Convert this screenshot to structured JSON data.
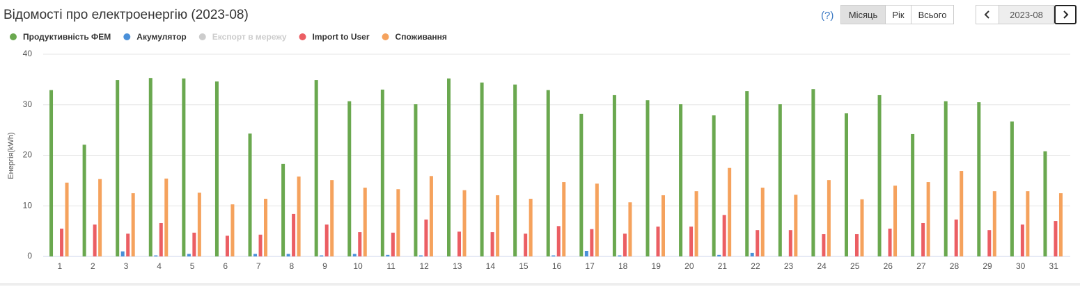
{
  "header": {
    "title": "Відомості про електроенергію (2023-08)"
  },
  "controls": {
    "help": "(?)",
    "periods": [
      "Місяць",
      "Рік",
      "Всього"
    ],
    "active_period": 0,
    "date": "2023-08"
  },
  "chart_data": {
    "type": "bar",
    "y_label": "Енергія(kWh)",
    "categories": [
      "1",
      "2",
      "3",
      "4",
      "5",
      "6",
      "7",
      "8",
      "9",
      "10",
      "11",
      "12",
      "13",
      "14",
      "15",
      "16",
      "17",
      "18",
      "19",
      "20",
      "21",
      "22",
      "23",
      "24",
      "25",
      "26",
      "27",
      "28",
      "29",
      "30",
      "31"
    ],
    "series": [
      {
        "name": "Продуктивність ФЕМ",
        "color": "#6aa84f",
        "visible": true,
        "values": [
          32.9,
          22.1,
          34.9,
          35.3,
          35.2,
          34.6,
          24.3,
          18.3,
          34.9,
          30.7,
          33.0,
          30.1,
          35.2,
          34.4,
          34.0,
          32.9,
          28.2,
          31.9,
          30.9,
          30.1,
          27.9,
          32.7,
          30.1,
          33.1,
          28.3,
          31.9,
          24.2,
          30.7,
          30.5,
          26.7,
          20.8
        ]
      },
      {
        "name": "Акумулятор",
        "color": "#4a90d9",
        "visible": true,
        "values": [
          0,
          0,
          1.0,
          0.2,
          0.5,
          0,
          0.5,
          0.5,
          0.2,
          0.5,
          0.3,
          0.2,
          0,
          0,
          0,
          0.2,
          1.1,
          0.2,
          0,
          0,
          0.3,
          0.7,
          0,
          0,
          0,
          0,
          0,
          0,
          0,
          0,
          0
        ]
      },
      {
        "name": "Експорт в мережу",
        "color": "#cccccc",
        "visible": false,
        "values": [
          null,
          null,
          null,
          null,
          null,
          null,
          null,
          null,
          null,
          null,
          null,
          null,
          null,
          null,
          null,
          null,
          null,
          null,
          null,
          null,
          null,
          null,
          null,
          null,
          null,
          null,
          null,
          null,
          null,
          null,
          null
        ]
      },
      {
        "name": "Import to User",
        "color": "#eb5e63",
        "visible": true,
        "values": [
          5.5,
          6.3,
          4.5,
          6.6,
          4.7,
          4.1,
          4.3,
          8.4,
          6.3,
          4.8,
          4.7,
          7.3,
          4.9,
          4.8,
          4.5,
          6.0,
          5.4,
          4.5,
          5.9,
          5.9,
          8.2,
          5.2,
          5.2,
          4.4,
          4.4,
          5.5,
          6.6,
          7.3,
          5.2,
          6.3,
          7.0
        ]
      },
      {
        "name": "Споживання",
        "color": "#f5a25d",
        "visible": true,
        "values": [
          14.6,
          15.3,
          12.5,
          15.4,
          12.6,
          10.3,
          11.4,
          15.8,
          15.1,
          13.6,
          13.3,
          15.9,
          13.1,
          12.1,
          11.4,
          14.7,
          14.4,
          10.7,
          12.1,
          12.9,
          17.5,
          13.6,
          12.2,
          15.1,
          11.3,
          14.0,
          14.7,
          16.9,
          12.9,
          12.9,
          12.5
        ]
      }
    ],
    "ylim": [
      0,
      40
    ],
    "yticks": [
      0,
      10,
      20,
      30,
      40
    ],
    "grid": true
  }
}
